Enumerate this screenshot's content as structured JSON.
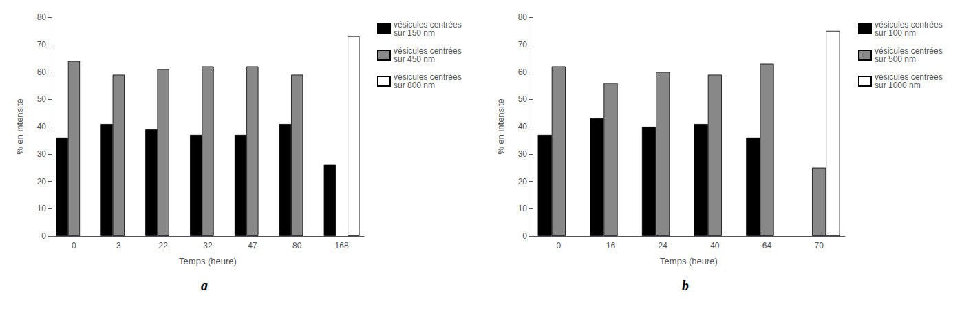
{
  "chart_data": [
    {
      "type": "bar",
      "xlabel": "Temps (heure)",
      "ylabel": "% en intensité",
      "annotations": [
        "a"
      ],
      "categories": [
        "0",
        "3",
        "22",
        "32",
        "47",
        "80",
        "168"
      ],
      "series": [
        {
          "name": "vésicules centrées\nsur 150 nm",
          "color": "#000000",
          "values": [
            36,
            41,
            39,
            37,
            37,
            41,
            26
          ]
        },
        {
          "name": "vésicules centrées\nsur 450 nm",
          "color": "#888888",
          "values": [
            64,
            59,
            61,
            62,
            62,
            59,
            null
          ]
        },
        {
          "name": "vésicules centrées\nsur 800 nm",
          "color": "#ffffff",
          "values": [
            null,
            null,
            null,
            null,
            null,
            null,
            73
          ]
        }
      ],
      "ylim": [
        0,
        80
      ],
      "yticks": [
        0,
        10,
        20,
        30,
        40,
        50,
        60,
        70,
        80
      ],
      "grid": false,
      "legend": "upper right"
    },
    {
      "type": "bar",
      "xlabel": "Temps (heure)",
      "ylabel": "% en intensité",
      "annotations": [
        "b"
      ],
      "categories": [
        "0",
        "16",
        "24",
        "40",
        "64",
        "70"
      ],
      "series": [
        {
          "name": "vésicules centrées\nsur 100 nm",
          "color": "#000000",
          "values": [
            37,
            43,
            40,
            41,
            36,
            null
          ]
        },
        {
          "name": "vésicules centrées\nsur 500 nm",
          "color": "#888888",
          "values": [
            62,
            56,
            60,
            59,
            63,
            25
          ]
        },
        {
          "name": "vésicules centrées\nsur 1000 nm",
          "color": "#ffffff",
          "values": [
            null,
            null,
            null,
            null,
            null,
            75
          ]
        }
      ],
      "ylim": [
        0,
        80
      ],
      "yticks": [
        0,
        10,
        20,
        30,
        40,
        50,
        60,
        70,
        80
      ],
      "grid": false,
      "legend": "upper right"
    }
  ]
}
